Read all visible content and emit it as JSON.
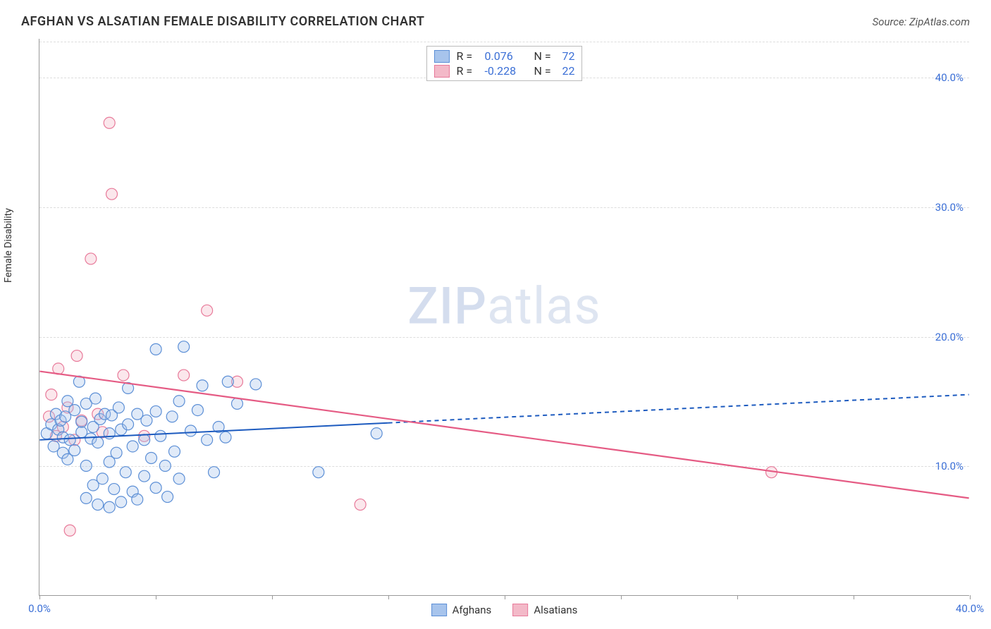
{
  "title": "AFGHAN VS ALSATIAN FEMALE DISABILITY CORRELATION CHART",
  "source": "Source: ZipAtlas.com",
  "ylabel": "Female Disability",
  "watermark_zip": "ZIP",
  "watermark_atlas": "atlas",
  "chart": {
    "type": "scatter",
    "background_color": "#ffffff",
    "grid_color": "#dddddd",
    "axis_color": "#999999",
    "tick_label_color": "#3b6fd6",
    "xlim": [
      0,
      40
    ],
    "ylim": [
      0,
      43
    ],
    "yticks": [
      10,
      20,
      30,
      40
    ],
    "ytick_labels": [
      "10.0%",
      "20.0%",
      "30.0%",
      "40.0%"
    ],
    "xticks_major": [
      0,
      40
    ],
    "xtick_labels": [
      "0.0%",
      "40.0%"
    ],
    "xticks_minor": [
      5,
      10,
      15,
      20,
      25,
      30,
      35
    ],
    "marker_radius": 8,
    "marker_stroke_width": 1.2,
    "marker_fill_opacity": 0.35
  },
  "series": {
    "afghans": {
      "label": "Afghans",
      "color_fill": "#a7c4ec",
      "color_stroke": "#5c8fd6",
      "r_value": "0.076",
      "n_value": "72",
      "trend": {
        "y_at_x0": 12.0,
        "y_at_x40": 15.5,
        "solid_until_x": 15,
        "dash": "6 5",
        "stroke": "#1d5bbf",
        "width": 2
      },
      "points": [
        [
          0.3,
          12.5
        ],
        [
          0.5,
          13.2
        ],
        [
          0.6,
          11.5
        ],
        [
          0.7,
          14.0
        ],
        [
          0.8,
          12.8
        ],
        [
          0.9,
          13.5
        ],
        [
          1.0,
          11.0
        ],
        [
          1.0,
          12.2
        ],
        [
          1.1,
          13.8
        ],
        [
          1.2,
          15.0
        ],
        [
          1.2,
          10.5
        ],
        [
          1.3,
          12.0
        ],
        [
          1.5,
          14.3
        ],
        [
          1.5,
          11.2
        ],
        [
          1.7,
          16.5
        ],
        [
          1.8,
          12.6
        ],
        [
          1.8,
          13.4
        ],
        [
          2.0,
          10.0
        ],
        [
          2.0,
          14.8
        ],
        [
          2.0,
          7.5
        ],
        [
          2.2,
          12.1
        ],
        [
          2.3,
          13.0
        ],
        [
          2.3,
          8.5
        ],
        [
          2.4,
          15.2
        ],
        [
          2.5,
          7.0
        ],
        [
          2.5,
          11.8
        ],
        [
          2.6,
          13.6
        ],
        [
          2.7,
          9.0
        ],
        [
          2.8,
          14.0
        ],
        [
          3.0,
          10.3
        ],
        [
          3.0,
          12.5
        ],
        [
          3.0,
          6.8
        ],
        [
          3.1,
          13.9
        ],
        [
          3.2,
          8.2
        ],
        [
          3.3,
          11.0
        ],
        [
          3.4,
          14.5
        ],
        [
          3.5,
          7.2
        ],
        [
          3.5,
          12.8
        ],
        [
          3.7,
          9.5
        ],
        [
          3.8,
          13.2
        ],
        [
          3.8,
          16.0
        ],
        [
          4.0,
          8.0
        ],
        [
          4.0,
          11.5
        ],
        [
          4.2,
          14.0
        ],
        [
          4.2,
          7.4
        ],
        [
          4.5,
          12.0
        ],
        [
          4.5,
          9.2
        ],
        [
          4.6,
          13.5
        ],
        [
          4.8,
          10.6
        ],
        [
          5.0,
          14.2
        ],
        [
          5.0,
          8.3
        ],
        [
          5.0,
          19.0
        ],
        [
          5.2,
          12.3
        ],
        [
          5.4,
          10.0
        ],
        [
          5.5,
          7.6
        ],
        [
          5.7,
          13.8
        ],
        [
          5.8,
          11.1
        ],
        [
          6.0,
          15.0
        ],
        [
          6.0,
          9.0
        ],
        [
          6.2,
          19.2
        ],
        [
          6.5,
          12.7
        ],
        [
          6.8,
          14.3
        ],
        [
          7.0,
          16.2
        ],
        [
          7.2,
          12.0
        ],
        [
          7.5,
          9.5
        ],
        [
          7.7,
          13.0
        ],
        [
          8.0,
          12.2
        ],
        [
          8.1,
          16.5
        ],
        [
          8.5,
          14.8
        ],
        [
          9.3,
          16.3
        ],
        [
          12.0,
          9.5
        ],
        [
          14.5,
          12.5
        ]
      ]
    },
    "alsatians": {
      "label": "Alsatians",
      "color_fill": "#f3b9c8",
      "color_stroke": "#e87a9a",
      "r_value": "-0.228",
      "n_value": "22",
      "trend": {
        "y_at_x0": 17.3,
        "y_at_x40": 7.5,
        "solid_until_x": 40,
        "dash": "",
        "stroke": "#e55b84",
        "width": 2.2
      },
      "points": [
        [
          0.4,
          13.8
        ],
        [
          0.5,
          15.5
        ],
        [
          0.7,
          12.3
        ],
        [
          0.8,
          17.5
        ],
        [
          1.0,
          13.0
        ],
        [
          1.2,
          14.5
        ],
        [
          1.3,
          5.0
        ],
        [
          1.5,
          12.0
        ],
        [
          1.6,
          18.5
        ],
        [
          1.8,
          13.5
        ],
        [
          2.2,
          26.0
        ],
        [
          2.5,
          14.0
        ],
        [
          2.7,
          12.6
        ],
        [
          3.0,
          36.5
        ],
        [
          3.1,
          31.0
        ],
        [
          3.6,
          17.0
        ],
        [
          4.5,
          12.3
        ],
        [
          6.2,
          17.0
        ],
        [
          7.2,
          22.0
        ],
        [
          8.5,
          16.5
        ],
        [
          13.8,
          7.0
        ],
        [
          31.5,
          9.5
        ]
      ]
    }
  },
  "legend_top": {
    "r_label": "R =",
    "n_label": "N ="
  },
  "legend_bottom": [
    {
      "key": "afghans"
    },
    {
      "key": "alsatians"
    }
  ]
}
